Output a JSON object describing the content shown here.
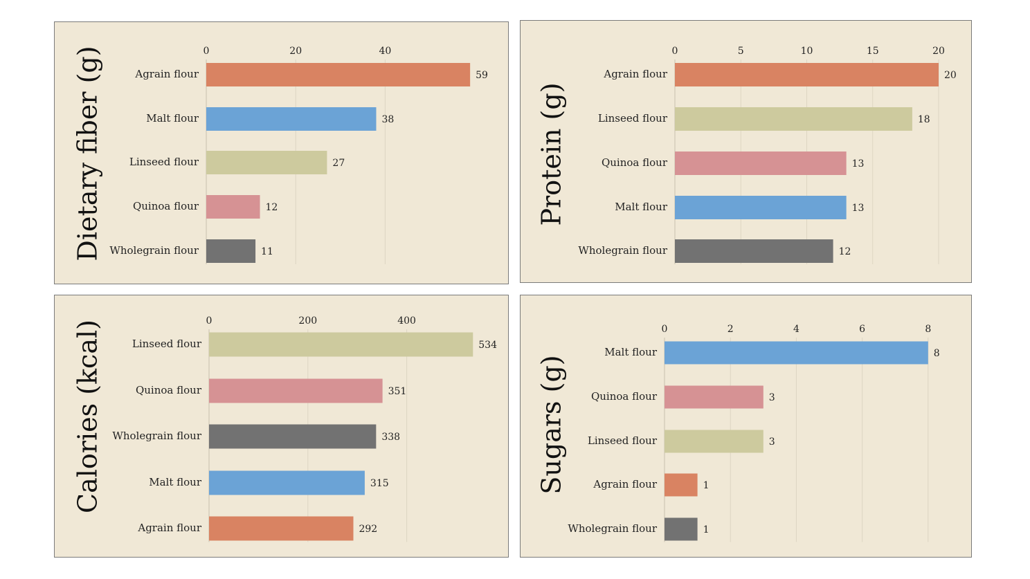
{
  "colors": {
    "Agrain flour": "#d98362",
    "Malt flour": "#6ba3d6",
    "Linseed flour": "#cdca9e",
    "Quinoa flour": "#d69294",
    "Wholegrain flour": "#727272"
  },
  "chart_data": [
    {
      "type": "bar",
      "orientation": "horizontal",
      "title": "Dietary fiber (g)",
      "categories": [
        "Agrain flour",
        "Malt flour",
        "Linseed flour",
        "Quinoa flour",
        "Wholegrain flour"
      ],
      "values": [
        59,
        38,
        27,
        12,
        11
      ],
      "ticks": [
        0,
        20,
        40
      ],
      "xlim": [
        0,
        60
      ],
      "grid": true
    },
    {
      "type": "bar",
      "orientation": "horizontal",
      "title": "Protein (g)",
      "categories": [
        "Agrain flour",
        "Linseed flour",
        "Quinoa flour",
        "Malt flour",
        "Wholegrain flour"
      ],
      "values": [
        20,
        18,
        13,
        13,
        12
      ],
      "ticks": [
        0,
        5,
        10,
        15,
        20
      ],
      "xlim": [
        0,
        21
      ],
      "grid": true
    },
    {
      "type": "bar",
      "orientation": "horizontal",
      "title": "Calories (kcal)",
      "categories": [
        "Linseed flour",
        "Quinoa flour",
        "Wholegrain flour",
        "Malt flour",
        "Agrain flour"
      ],
      "values": [
        534,
        351,
        338,
        315,
        292
      ],
      "ticks": [
        0,
        200,
        400
      ],
      "xlim": [
        0,
        560
      ],
      "grid": true
    },
    {
      "type": "bar",
      "orientation": "horizontal",
      "title": "Sugars (g)",
      "categories": [
        "Malt flour",
        "Quinoa flour",
        "Linseed flour",
        "Agrain flour",
        "Wholegrain flour"
      ],
      "values": [
        8,
        3,
        3,
        1,
        1
      ],
      "ticks": [
        0,
        2,
        4,
        6,
        8
      ],
      "xlim": [
        0,
        8.5
      ],
      "grid": true
    }
  ]
}
